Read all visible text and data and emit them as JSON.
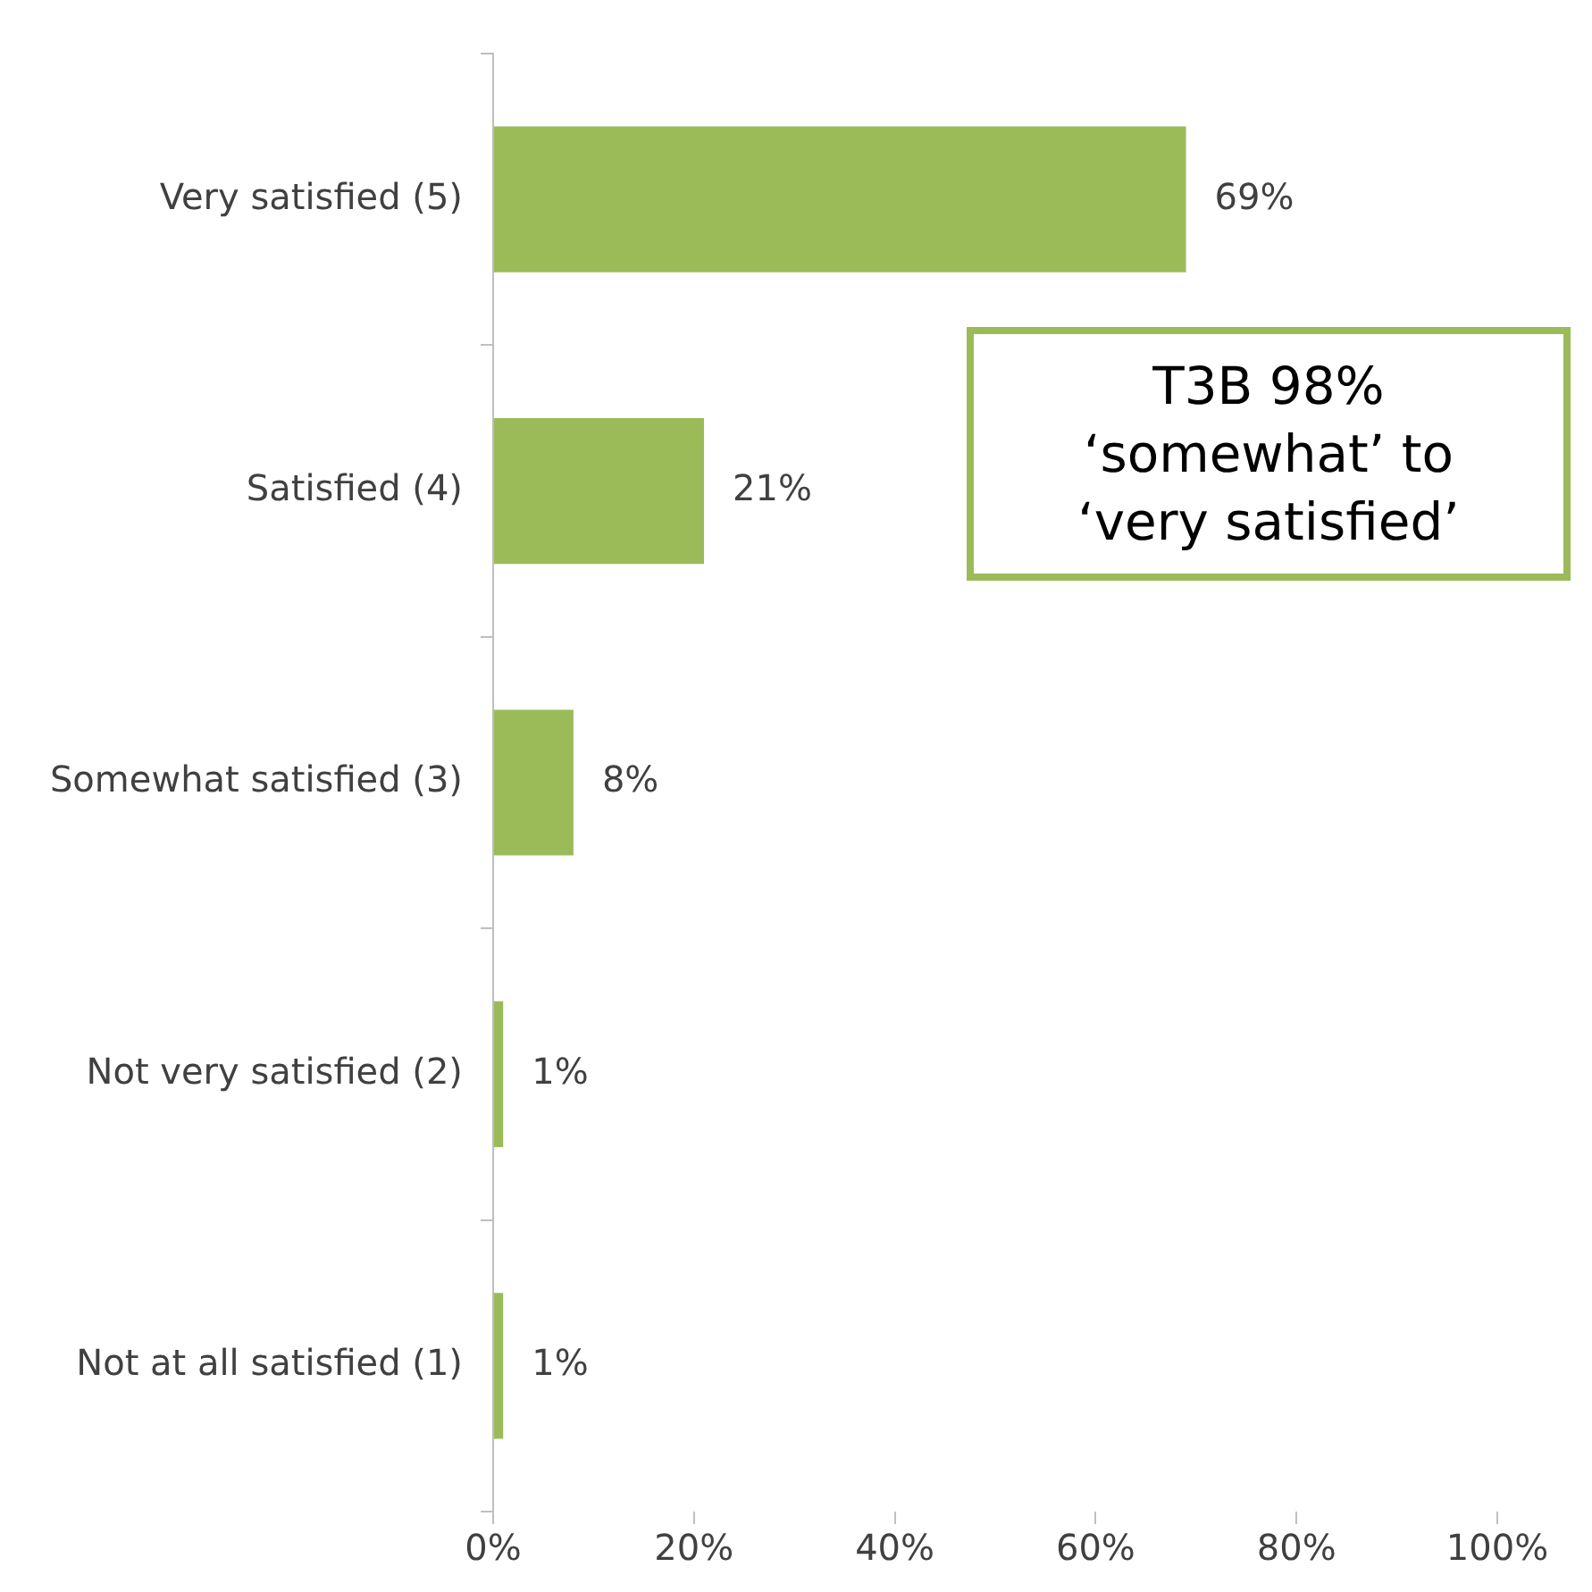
{
  "chart_data": {
    "type": "bar",
    "orientation": "horizontal",
    "categories": [
      "Very satisfied (5)",
      "Satisfied (4)",
      "Somewhat satisfied (3)",
      "Not very satisfied (2)",
      "Not at all satisfied (1)"
    ],
    "values": [
      69,
      21,
      8,
      1,
      1
    ],
    "value_labels": [
      "69%",
      "21%",
      "8%",
      "1%",
      "1%"
    ],
    "color": "#9bbb59",
    "xlim": [
      0,
      100
    ],
    "xticks": [
      {
        "value": 0,
        "label": "0%"
      },
      {
        "value": 20,
        "label": "20%"
      },
      {
        "value": 40,
        "label": "40%"
      },
      {
        "value": 60,
        "label": "60%"
      },
      {
        "value": 80,
        "label": "80%"
      },
      {
        "value": 100,
        "label": "100%"
      }
    ],
    "grid": false,
    "legend": false,
    "annotations": [
      "T3B 98%\n‘somewhat’ to\n‘very satisfied’"
    ]
  }
}
